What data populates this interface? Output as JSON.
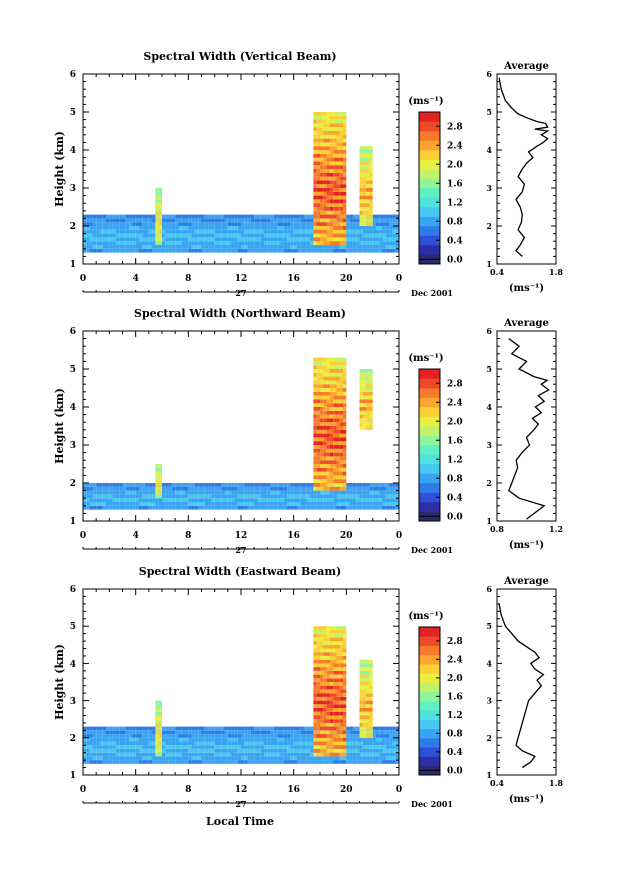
{
  "date_label": "Dec 2001",
  "day_label": "27",
  "xlabel_bottom": "Local Time",
  "colorbar": {
    "unit": "(ms⁻¹)",
    "ticks": [
      "0.0",
      "0.4",
      "0.8",
      "1.2",
      "1.6",
      "2.0",
      "2.4",
      "2.8"
    ],
    "colors": [
      "#2a2a72",
      "#2e2ea8",
      "#2e4fd6",
      "#2f7be8",
      "#3aa3f2",
      "#46c8f0",
      "#4fe0e0",
      "#5ef0c0",
      "#8ef59a",
      "#c2f26c",
      "#eaee40",
      "#fbd035",
      "#fba52e",
      "#f77a2a",
      "#ef4a28",
      "#e32222"
    ]
  },
  "chart_data": [
    {
      "type": "heatmap",
      "title": "Spectral Width (Vertical Beam)",
      "ylabel": "Height (km)",
      "xlim": [
        0,
        24
      ],
      "ylim": [
        1,
        6
      ],
      "x_ticks": [
        "0",
        "4",
        "8",
        "12",
        "16",
        "20",
        "0"
      ],
      "y_ticks": [
        "1",
        "2",
        "3",
        "4",
        "5",
        "6"
      ],
      "z_unit": "ms⁻¹",
      "z_range": [
        0.0,
        2.8
      ],
      "features": [
        {
          "x": [
            0,
            24
          ],
          "y": [
            1.3,
            2.3
          ],
          "value": 1.0
        },
        {
          "x": [
            5.5,
            6.0
          ],
          "y": [
            1.5,
            3.0
          ],
          "value": 2.2
        },
        {
          "x": [
            17.5,
            20.0
          ],
          "y": [
            1.5,
            5.0
          ],
          "value": 2.8
        },
        {
          "x": [
            21.0,
            22.0
          ],
          "y": [
            2.0,
            4.1
          ],
          "value": 2.4
        }
      ]
    },
    {
      "type": "heatmap",
      "title": "Spectral Width (Northward Beam)",
      "ylabel": "Height (km)",
      "xlim": [
        0,
        24
      ],
      "ylim": [
        1,
        6
      ],
      "x_ticks": [
        "0",
        "4",
        "8",
        "12",
        "16",
        "20",
        "0"
      ],
      "y_ticks": [
        "1",
        "2",
        "3",
        "4",
        "5",
        "6"
      ],
      "z_unit": "ms⁻¹",
      "z_range": [
        0.0,
        2.8
      ],
      "features": [
        {
          "x": [
            0,
            24
          ],
          "y": [
            1.3,
            2.0
          ],
          "value": 1.0
        },
        {
          "x": [
            5.5,
            6.0
          ],
          "y": [
            1.6,
            2.5
          ],
          "value": 2.2
        },
        {
          "x": [
            17.5,
            20.0
          ],
          "y": [
            1.8,
            5.3
          ],
          "value": 2.8
        },
        {
          "x": [
            21.0,
            22.0
          ],
          "y": [
            3.4,
            5.0
          ],
          "value": 2.4
        }
      ]
    },
    {
      "type": "heatmap",
      "title": "Spectral Width (Eastward Beam)",
      "ylabel": "Height (km)",
      "xlim": [
        0,
        24
      ],
      "ylim": [
        1,
        6
      ],
      "x_ticks": [
        "0",
        "4",
        "8",
        "12",
        "16",
        "20",
        "0"
      ],
      "y_ticks": [
        "1",
        "2",
        "3",
        "4",
        "5",
        "6"
      ],
      "z_unit": "ms⁻¹",
      "z_range": [
        0.0,
        2.8
      ],
      "features": [
        {
          "x": [
            0,
            24
          ],
          "y": [
            1.3,
            2.3
          ],
          "value": 1.0
        },
        {
          "x": [
            5.5,
            6.0
          ],
          "y": [
            1.5,
            3.0
          ],
          "value": 2.2
        },
        {
          "x": [
            17.5,
            20.0
          ],
          "y": [
            1.5,
            5.0
          ],
          "value": 2.8
        },
        {
          "x": [
            21.0,
            22.0
          ],
          "y": [
            2.0,
            4.1
          ],
          "value": 2.4
        }
      ]
    },
    {
      "type": "line",
      "title": "Average",
      "xlabel": "(ms⁻¹)",
      "xlim": [
        0.4,
        1.8
      ],
      "ylim": [
        1,
        6
      ],
      "x_ticks": [
        "0.4",
        "1.8"
      ],
      "y_ticks": [
        "1",
        "2",
        "3",
        "4",
        "5",
        "6"
      ],
      "x": [
        1.0,
        0.85,
        0.95,
        1.05,
        0.9,
        0.98,
        1.0,
        0.95,
        0.85,
        1.0,
        1.05,
        0.9,
        1.0,
        1.1,
        1.25,
        1.15,
        1.35,
        1.5,
        1.6,
        1.45,
        1.6,
        1.3,
        1.6,
        1.55,
        1.35,
        1.1,
        0.9,
        0.75,
        0.6,
        0.5,
        0.45
      ],
      "y": [
        1.2,
        1.35,
        1.5,
        1.7,
        1.9,
        2.1,
        2.3,
        2.5,
        2.7,
        2.9,
        3.1,
        3.3,
        3.5,
        3.65,
        3.8,
        3.95,
        4.1,
        4.2,
        4.3,
        4.4,
        4.5,
        4.55,
        4.6,
        4.7,
        4.75,
        4.85,
        4.95,
        5.1,
        5.3,
        5.6,
        5.9
      ]
    },
    {
      "type": "line",
      "title": "Average",
      "xlabel": "(ms⁻¹)",
      "xlim": [
        0.8,
        1.2
      ],
      "ylim": [
        1,
        6
      ],
      "x_ticks": [
        "0.8",
        "1.2"
      ],
      "y_ticks": [
        "1",
        "2",
        "3",
        "4",
        "5",
        "6"
      ],
      "x": [
        1.0,
        1.12,
        0.95,
        0.88,
        0.9,
        0.92,
        0.94,
        0.93,
        0.97,
        1.02,
        1.0,
        1.05,
        1.08,
        1.04,
        1.1,
        1.06,
        1.12,
        1.08,
        1.15,
        1.1,
        1.14,
        1.05,
        0.95,
        1.0,
        0.9,
        0.95,
        0.88
      ],
      "y": [
        1.05,
        1.4,
        1.6,
        1.8,
        2.0,
        2.2,
        2.4,
        2.6,
        2.8,
        3.0,
        3.2,
        3.4,
        3.55,
        3.7,
        3.85,
        4.0,
        4.15,
        4.3,
        4.45,
        4.6,
        4.7,
        4.8,
        5.0,
        5.2,
        5.4,
        5.6,
        5.8
      ]
    },
    {
      "type": "line",
      "title": "Average",
      "xlabel": "(ms⁻¹)",
      "xlim": [
        0.4,
        1.8
      ],
      "ylim": [
        1,
        6
      ],
      "x_ticks": [
        "0.4",
        "1.8"
      ],
      "y_ticks": [
        "1",
        "2",
        "3",
        "4",
        "5",
        "6"
      ],
      "x": [
        1.0,
        1.2,
        1.3,
        1.0,
        0.85,
        0.9,
        0.95,
        1.0,
        1.05,
        1.1,
        1.15,
        1.3,
        1.45,
        1.35,
        1.5,
        1.3,
        1.2,
        1.4,
        1.3,
        1.1,
        0.9,
        0.75,
        0.6,
        0.5,
        0.45
      ],
      "y": [
        1.2,
        1.35,
        1.5,
        1.65,
        1.8,
        2.0,
        2.2,
        2.4,
        2.6,
        2.8,
        3.0,
        3.2,
        3.4,
        3.55,
        3.7,
        3.85,
        4.0,
        4.15,
        4.3,
        4.45,
        4.6,
        4.8,
        5.0,
        5.3,
        5.6
      ]
    }
  ]
}
